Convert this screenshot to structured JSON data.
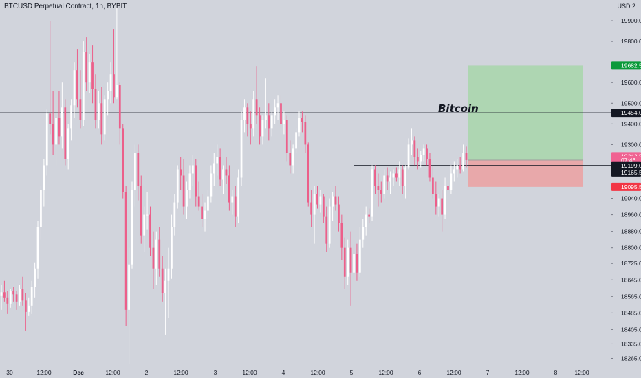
{
  "header": {
    "title": "BTCUSD Perpetual Contract, 1h, BYBIT",
    "currency": "USD",
    "currency_extra": "2"
  },
  "annotation": "Bitcoin",
  "chart_data": {
    "type": "candlestick",
    "symbol": "BTCUSD",
    "interval": "1h",
    "exchange": "BYBIT",
    "ylim": [
      18230,
      20000
    ],
    "x_ticks": [
      "30",
      "12:00",
      "Dec",
      "12:00",
      "2",
      "12:00",
      "3",
      "12:00",
      "4",
      "12:00",
      "5",
      "12:00",
      "6",
      "12:00",
      "7",
      "12:00",
      "8",
      "12:00"
    ],
    "y_ticks": [
      19900.0,
      19800.0,
      19600.0,
      19500.0,
      19400.0,
      19300.0,
      19199.0,
      19040.0,
      18960.0,
      18880.0,
      18800.0,
      18725.0,
      18645.0,
      18565.0,
      18485.0,
      18405.0,
      18335.0,
      18265.0
    ],
    "price_labels": [
      {
        "label": "19682.5",
        "value": 19682.5,
        "color": "#0a9a3a"
      },
      {
        "label": "19454.0",
        "value": 19454.0,
        "color": "#131722"
      },
      {
        "label": "19243.5",
        "value": 19243.5,
        "color": "#f06292"
      },
      {
        "label": "07:46",
        "value": 19225.0,
        "color": "#f06292"
      },
      {
        "label": "19199.0",
        "value": 19199.0,
        "color": "#131722"
      },
      {
        "label": "19165.5",
        "value": 19165.5,
        "color": "#131722"
      },
      {
        "label": "19095.5",
        "value": 19095.5,
        "color": "#f23645"
      }
    ],
    "horizontal_lines": [
      19454.0,
      19199.0
    ],
    "position_tool": {
      "target": 19682.5,
      "entry": 19225.0,
      "stop": 19095.5
    },
    "candle_colors": {
      "up": "#ffffff",
      "down": "#ec5f8a"
    },
    "candles": [
      {
        "o": 18570,
        "h": 18620,
        "l": 18500,
        "c": 18585
      },
      {
        "o": 18585,
        "h": 18640,
        "l": 18540,
        "c": 18560
      },
      {
        "o": 18560,
        "h": 18590,
        "l": 18480,
        "c": 18530
      },
      {
        "o": 18530,
        "h": 18600,
        "l": 18510,
        "c": 18590
      },
      {
        "o": 18590,
        "h": 18610,
        "l": 18540,
        "c": 18575
      },
      {
        "o": 18575,
        "h": 18590,
        "l": 18500,
        "c": 18540
      },
      {
        "o": 18540,
        "h": 18620,
        "l": 18520,
        "c": 18600
      },
      {
        "o": 18600,
        "h": 18660,
        "l": 18520,
        "c": 18545
      },
      {
        "o": 18545,
        "h": 18580,
        "l": 18400,
        "c": 18490
      },
      {
        "o": 18490,
        "h": 18560,
        "l": 18470,
        "c": 18520
      },
      {
        "o": 18520,
        "h": 18640,
        "l": 18480,
        "c": 18610
      },
      {
        "o": 18610,
        "h": 18730,
        "l": 18560,
        "c": 18700
      },
      {
        "o": 18700,
        "h": 18930,
        "l": 18650,
        "c": 18900
      },
      {
        "o": 18900,
        "h": 19100,
        "l": 18840,
        "c": 19080
      },
      {
        "o": 19080,
        "h": 19230,
        "l": 19000,
        "c": 19200
      },
      {
        "o": 19200,
        "h": 19470,
        "l": 19150,
        "c": 19450
      },
      {
        "o": 19450,
        "h": 19900,
        "l": 19350,
        "c": 19400
      },
      {
        "o": 19400,
        "h": 19560,
        "l": 19250,
        "c": 19300
      },
      {
        "o": 19300,
        "h": 19480,
        "l": 19200,
        "c": 19430
      },
      {
        "o": 19430,
        "h": 19560,
        "l": 19300,
        "c": 19340
      },
      {
        "o": 19340,
        "h": 19600,
        "l": 19280,
        "c": 19480
      },
      {
        "o": 19480,
        "h": 19520,
        "l": 19200,
        "c": 19230
      },
      {
        "o": 19230,
        "h": 19400,
        "l": 19180,
        "c": 19380
      },
      {
        "o": 19380,
        "h": 19520,
        "l": 19320,
        "c": 19490
      },
      {
        "o": 19490,
        "h": 19700,
        "l": 19430,
        "c": 19660
      },
      {
        "o": 19660,
        "h": 19760,
        "l": 19480,
        "c": 19520
      },
      {
        "o": 19520,
        "h": 19660,
        "l": 19380,
        "c": 19420
      },
      {
        "o": 19420,
        "h": 19800,
        "l": 19390,
        "c": 19750
      },
      {
        "o": 19750,
        "h": 19820,
        "l": 19560,
        "c": 19600
      },
      {
        "o": 19600,
        "h": 19740,
        "l": 19550,
        "c": 19700
      },
      {
        "o": 19700,
        "h": 19780,
        "l": 19500,
        "c": 19570
      },
      {
        "o": 19570,
        "h": 19640,
        "l": 19380,
        "c": 19420
      },
      {
        "o": 19420,
        "h": 19560,
        "l": 19380,
        "c": 19500
      },
      {
        "o": 19500,
        "h": 19580,
        "l": 19300,
        "c": 19350
      },
      {
        "o": 19350,
        "h": 19540,
        "l": 19320,
        "c": 19520
      },
      {
        "o": 19520,
        "h": 19600,
        "l": 19440,
        "c": 19560
      },
      {
        "o": 19560,
        "h": 19700,
        "l": 19500,
        "c": 19640
      },
      {
        "o": 19640,
        "h": 19860,
        "l": 19500,
        "c": 19530
      },
      {
        "o": 19530,
        "h": 19980,
        "l": 19520,
        "c": 19590
      },
      {
        "o": 19590,
        "h": 19600,
        "l": 19300,
        "c": 19380
      },
      {
        "o": 19380,
        "h": 19400,
        "l": 19040,
        "c": 19070
      },
      {
        "o": 19070,
        "h": 19100,
        "l": 18420,
        "c": 18500
      },
      {
        "o": 18500,
        "h": 18800,
        "l": 18240,
        "c": 18720
      },
      {
        "o": 18720,
        "h": 19120,
        "l": 18700,
        "c": 19080
      },
      {
        "o": 19080,
        "h": 19300,
        "l": 19000,
        "c": 19260
      },
      {
        "o": 19260,
        "h": 19300,
        "l": 19030,
        "c": 19100
      },
      {
        "o": 19100,
        "h": 19150,
        "l": 18820,
        "c": 18860
      },
      {
        "o": 18860,
        "h": 19000,
        "l": 18780,
        "c": 18960
      },
      {
        "o": 18960,
        "h": 19070,
        "l": 18890,
        "c": 18960
      },
      {
        "o": 18960,
        "h": 19000,
        "l": 18760,
        "c": 18800
      },
      {
        "o": 18800,
        "h": 18880,
        "l": 18600,
        "c": 18700
      },
      {
        "o": 18700,
        "h": 18880,
        "l": 18620,
        "c": 18840
      },
      {
        "o": 18840,
        "h": 18900,
        "l": 18660,
        "c": 18700
      },
      {
        "o": 18700,
        "h": 18760,
        "l": 18540,
        "c": 18580
      },
      {
        "o": 18580,
        "h": 18700,
        "l": 18380,
        "c": 18640
      },
      {
        "o": 18640,
        "h": 18800,
        "l": 18460,
        "c": 18700
      },
      {
        "o": 18700,
        "h": 18960,
        "l": 18650,
        "c": 18900
      },
      {
        "o": 18900,
        "h": 19060,
        "l": 18860,
        "c": 19020
      },
      {
        "o": 19020,
        "h": 19200,
        "l": 18990,
        "c": 19180
      },
      {
        "o": 19180,
        "h": 19240,
        "l": 19080,
        "c": 19150
      },
      {
        "o": 19150,
        "h": 19230,
        "l": 18960,
        "c": 19000
      },
      {
        "o": 19000,
        "h": 19120,
        "l": 18940,
        "c": 19080
      },
      {
        "o": 19080,
        "h": 19200,
        "l": 19040,
        "c": 19160
      },
      {
        "o": 19160,
        "h": 19250,
        "l": 19100,
        "c": 19200
      },
      {
        "o": 19200,
        "h": 19230,
        "l": 19000,
        "c": 19050
      },
      {
        "o": 19050,
        "h": 19120,
        "l": 18980,
        "c": 19000
      },
      {
        "o": 19000,
        "h": 19060,
        "l": 18900,
        "c": 18940
      },
      {
        "o": 18940,
        "h": 19020,
        "l": 18880,
        "c": 18980
      },
      {
        "o": 18980,
        "h": 19080,
        "l": 18940,
        "c": 19050
      },
      {
        "o": 19050,
        "h": 19200,
        "l": 19020,
        "c": 19160
      },
      {
        "o": 19160,
        "h": 19260,
        "l": 19100,
        "c": 19210
      },
      {
        "o": 19210,
        "h": 19300,
        "l": 19150,
        "c": 19240
      },
      {
        "o": 19240,
        "h": 19280,
        "l": 19100,
        "c": 19130
      },
      {
        "o": 19130,
        "h": 19200,
        "l": 19060,
        "c": 19180
      },
      {
        "o": 19180,
        "h": 19240,
        "l": 19110,
        "c": 19150
      },
      {
        "o": 19150,
        "h": 19200,
        "l": 18980,
        "c": 19020
      },
      {
        "o": 19020,
        "h": 19080,
        "l": 18960,
        "c": 19050
      },
      {
        "o": 19050,
        "h": 19100,
        "l": 18900,
        "c": 18950
      },
      {
        "o": 18950,
        "h": 19180,
        "l": 18920,
        "c": 19140
      },
      {
        "o": 19140,
        "h": 19460,
        "l": 19100,
        "c": 19420
      },
      {
        "o": 19420,
        "h": 19520,
        "l": 19360,
        "c": 19480
      },
      {
        "o": 19480,
        "h": 19500,
        "l": 19340,
        "c": 19400
      },
      {
        "o": 19400,
        "h": 19460,
        "l": 19300,
        "c": 19380
      },
      {
        "o": 19380,
        "h": 19560,
        "l": 19340,
        "c": 19520
      },
      {
        "o": 19520,
        "h": 19680,
        "l": 19400,
        "c": 19440
      },
      {
        "o": 19440,
        "h": 19480,
        "l": 19300,
        "c": 19340
      },
      {
        "o": 19340,
        "h": 19440,
        "l": 19300,
        "c": 19420
      },
      {
        "o": 19420,
        "h": 19620,
        "l": 19380,
        "c": 19440
      },
      {
        "o": 19440,
        "h": 19500,
        "l": 19320,
        "c": 19380
      },
      {
        "o": 19380,
        "h": 19460,
        "l": 19340,
        "c": 19440
      },
      {
        "o": 19440,
        "h": 19520,
        "l": 19400,
        "c": 19480
      },
      {
        "o": 19480,
        "h": 19540,
        "l": 19420,
        "c": 19500
      },
      {
        "o": 19500,
        "h": 19540,
        "l": 19380,
        "c": 19400
      },
      {
        "o": 19400,
        "h": 19460,
        "l": 19350,
        "c": 19420
      },
      {
        "o": 19420,
        "h": 19440,
        "l": 19220,
        "c": 19260
      },
      {
        "o": 19260,
        "h": 19320,
        "l": 19160,
        "c": 19200
      },
      {
        "o": 19200,
        "h": 19300,
        "l": 19160,
        "c": 19280
      },
      {
        "o": 19280,
        "h": 19380,
        "l": 19260,
        "c": 19360
      },
      {
        "o": 19360,
        "h": 19460,
        "l": 19340,
        "c": 19430
      },
      {
        "o": 19430,
        "h": 19460,
        "l": 19360,
        "c": 19410
      },
      {
        "o": 19410,
        "h": 19440,
        "l": 19260,
        "c": 19300
      },
      {
        "o": 19300,
        "h": 19310,
        "l": 19000,
        "c": 19020
      },
      {
        "o": 19020,
        "h": 19080,
        "l": 18900,
        "c": 18960
      },
      {
        "o": 18960,
        "h": 19100,
        "l": 18820,
        "c": 19060
      },
      {
        "o": 19060,
        "h": 19100,
        "l": 18990,
        "c": 19010
      },
      {
        "o": 19010,
        "h": 19080,
        "l": 18970,
        "c": 19050
      },
      {
        "o": 19050,
        "h": 19060,
        "l": 18920,
        "c": 18950
      },
      {
        "o": 18950,
        "h": 19000,
        "l": 18780,
        "c": 18820
      },
      {
        "o": 18820,
        "h": 19040,
        "l": 18800,
        "c": 19000
      },
      {
        "o": 19000,
        "h": 19070,
        "l": 18930,
        "c": 19050
      },
      {
        "o": 19050,
        "h": 19100,
        "l": 18980,
        "c": 19010
      },
      {
        "o": 19010,
        "h": 19050,
        "l": 18880,
        "c": 18920
      },
      {
        "o": 18920,
        "h": 18960,
        "l": 18740,
        "c": 18800
      },
      {
        "o": 18800,
        "h": 18850,
        "l": 18600,
        "c": 18660
      },
      {
        "o": 18660,
        "h": 18840,
        "l": 18620,
        "c": 18800
      },
      {
        "o": 18800,
        "h": 18880,
        "l": 18520,
        "c": 18680
      },
      {
        "o": 18680,
        "h": 18800,
        "l": 18640,
        "c": 18770
      },
      {
        "o": 18770,
        "h": 18820,
        "l": 18640,
        "c": 18680
      },
      {
        "o": 18680,
        "h": 18900,
        "l": 18660,
        "c": 18840
      },
      {
        "o": 18840,
        "h": 18940,
        "l": 18800,
        "c": 18900
      },
      {
        "o": 18900,
        "h": 19000,
        "l": 18860,
        "c": 18960
      },
      {
        "o": 18960,
        "h": 18990,
        "l": 18920,
        "c": 18950
      },
      {
        "o": 18950,
        "h": 19200,
        "l": 18930,
        "c": 19180
      },
      {
        "o": 19180,
        "h": 19200,
        "l": 19060,
        "c": 19100
      },
      {
        "o": 19100,
        "h": 19160,
        "l": 19000,
        "c": 19080
      },
      {
        "o": 19080,
        "h": 19120,
        "l": 19020,
        "c": 19060
      },
      {
        "o": 19060,
        "h": 19180,
        "l": 19040,
        "c": 19150
      },
      {
        "o": 19150,
        "h": 19190,
        "l": 19080,
        "c": 19120
      },
      {
        "o": 19120,
        "h": 19170,
        "l": 19060,
        "c": 19140
      },
      {
        "o": 19140,
        "h": 19180,
        "l": 19100,
        "c": 19160
      },
      {
        "o": 19160,
        "h": 19190,
        "l": 19120,
        "c": 19140
      },
      {
        "o": 19140,
        "h": 19220,
        "l": 19100,
        "c": 19180
      },
      {
        "o": 19180,
        "h": 19200,
        "l": 19060,
        "c": 19100
      },
      {
        "o": 19100,
        "h": 19200,
        "l": 19040,
        "c": 19190
      },
      {
        "o": 19190,
        "h": 19330,
        "l": 19180,
        "c": 19300
      },
      {
        "o": 19300,
        "h": 19380,
        "l": 19250,
        "c": 19320
      },
      {
        "o": 19320,
        "h": 19340,
        "l": 19200,
        "c": 19240
      },
      {
        "o": 19240,
        "h": 19280,
        "l": 19180,
        "c": 19220
      },
      {
        "o": 19220,
        "h": 19270,
        "l": 19190,
        "c": 19250
      },
      {
        "o": 19250,
        "h": 19300,
        "l": 19220,
        "c": 19280
      },
      {
        "o": 19280,
        "h": 19300,
        "l": 19200,
        "c": 19230
      },
      {
        "o": 19230,
        "h": 19260,
        "l": 19120,
        "c": 19140
      },
      {
        "o": 19140,
        "h": 19200,
        "l": 19040,
        "c": 19060
      },
      {
        "o": 19060,
        "h": 19120,
        "l": 18960,
        "c": 19000
      },
      {
        "o": 19000,
        "h": 19060,
        "l": 18950,
        "c": 19040
      },
      {
        "o": 19040,
        "h": 19080,
        "l": 18880,
        "c": 18960
      },
      {
        "o": 18960,
        "h": 19140,
        "l": 18940,
        "c": 19100
      },
      {
        "o": 19100,
        "h": 19160,
        "l": 19040,
        "c": 19080
      },
      {
        "o": 19080,
        "h": 19200,
        "l": 19060,
        "c": 19160
      },
      {
        "o": 19160,
        "h": 19220,
        "l": 19120,
        "c": 19180
      },
      {
        "o": 19180,
        "h": 19230,
        "l": 19140,
        "c": 19200
      },
      {
        "o": 19200,
        "h": 19240,
        "l": 19160,
        "c": 19180
      },
      {
        "o": 19180,
        "h": 19300,
        "l": 19170,
        "c": 19260
      },
      {
        "o": 19260,
        "h": 19290,
        "l": 19190,
        "c": 19225
      }
    ]
  }
}
